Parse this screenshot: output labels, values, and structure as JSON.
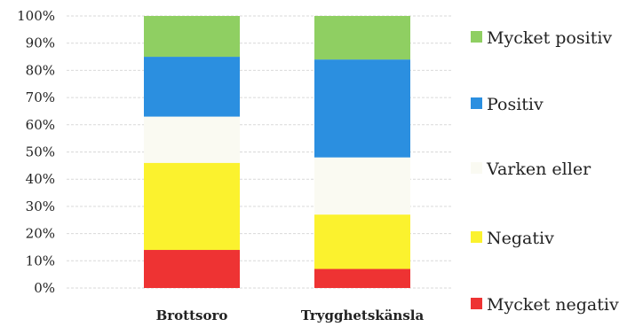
{
  "chart_data": {
    "type": "bar",
    "stacked": true,
    "title": "",
    "xlabel": "",
    "ylabel": "",
    "ylim": [
      0,
      100
    ],
    "y_ticks": [
      "0%",
      "10%",
      "20%",
      "30%",
      "40%",
      "50%",
      "60%",
      "70%",
      "80%",
      "90%",
      "100%"
    ],
    "categories": [
      "Brottsoro",
      "Trygghetskänsla"
    ],
    "series": [
      {
        "name": "Mycket negativ",
        "color": "#ee3333",
        "values": [
          14,
          7
        ]
      },
      {
        "name": "Negativ",
        "color": "#fbf22e",
        "values": [
          32,
          20
        ]
      },
      {
        "name": "Varken eller",
        "color": "#fafaf2",
        "values": [
          17,
          21
        ]
      },
      {
        "name": "Positiv",
        "color": "#2b8fe0",
        "values": [
          22,
          36
        ]
      },
      {
        "name": "Mycket positiv",
        "color": "#8fcf62",
        "values": [
          15,
          16
        ]
      }
    ],
    "legend_position": "right",
    "legend_order": [
      "Mycket positiv",
      "Positiv",
      "Varken eller",
      "Negativ",
      "Mycket negativ"
    ],
    "grid": true
  }
}
